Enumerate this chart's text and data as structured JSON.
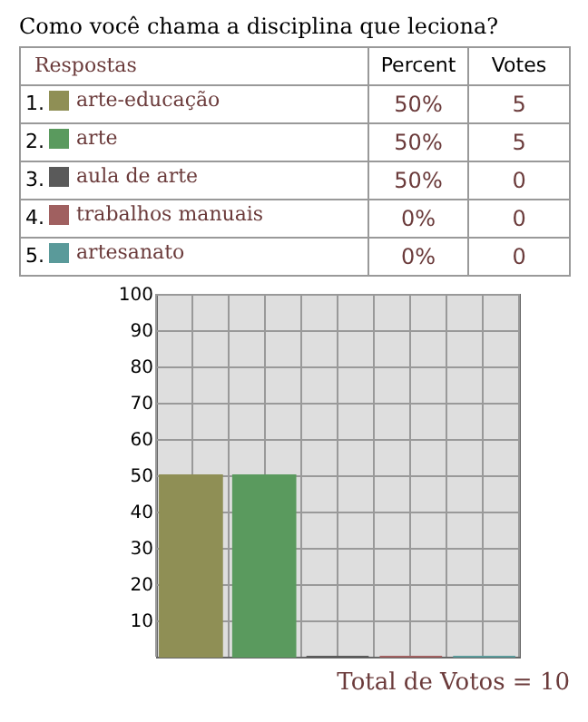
{
  "chart_data": {
    "type": "bar",
    "title": "Como você chama a disciplina que leciona?",
    "categories": [
      null,
      null,
      null,
      null,
      null
    ],
    "series": [
      {
        "name": "arte-educação",
        "color": "#8f8f55",
        "values": [
          50,
          null,
          null,
          null,
          null
        ]
      },
      {
        "name": "arte",
        "color": "#5a9a5e",
        "values": [
          null,
          50,
          null,
          null,
          null
        ]
      },
      {
        "name": "aula de arte",
        "color": "#5a5a5a",
        "values": [
          null,
          null,
          0,
          null,
          null
        ]
      },
      {
        "name": "trabalhos manuais",
        "color": "#a06060",
        "values": [
          null,
          null,
          null,
          0,
          null
        ]
      },
      {
        "name": "artesanato",
        "color": "#5a9a9a",
        "values": [
          null,
          null,
          null,
          null,
          0
        ]
      }
    ],
    "annotations": [
      "Respostas",
      "Percent",
      "Votes",
      "1.",
      "2.",
      "3.",
      "4.",
      "5.",
      "50%",
      "50%",
      "50%",
      "0%",
      "0%",
      "5",
      "5",
      "0",
      "0",
      "0",
      "Total de Votos = 10"
    ],
    "ylim": [
      0,
      100
    ],
    "yticks": [
      10,
      20,
      30,
      40,
      50,
      60,
      70,
      80,
      90,
      100
    ],
    "grid": true,
    "tick_labels": "y",
    "legend": "top left"
  }
}
